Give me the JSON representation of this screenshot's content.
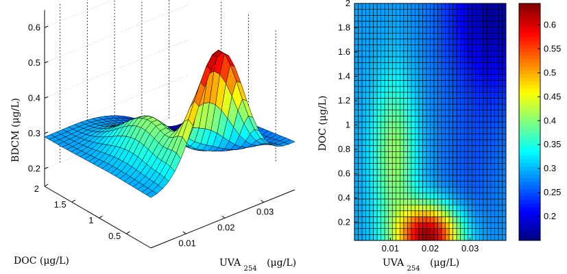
{
  "chart_data": [
    {
      "type": "surface3d",
      "zlabel": "BDCM  (μg/L)",
      "xlabel": "UVA",
      "xlabel_subscript": "254",
      "xlabel_units": "(μg/L)",
      "ylabel": "DOC  (μg/L)",
      "x_ticks": [
        "0.01",
        "0.02",
        "0.03"
      ],
      "y_ticks": [
        "0.5",
        "1",
        "1.5",
        "2"
      ],
      "z_ticks": [
        "0.2",
        "0.3",
        "0.4",
        "0.5",
        "0.6"
      ],
      "xlim": [
        0.001,
        0.038
      ],
      "ylim": [
        0.05,
        2.0
      ],
      "zlim": [
        0.15,
        0.65
      ],
      "colormap": "jet",
      "grid": true
    },
    {
      "type": "heatmap",
      "xlabel": "UVA",
      "xlabel_subscript": "254",
      "xlabel_units": "(μg/L)",
      "ylabel": "DOC  (μg/L)",
      "x_ticks": [
        "0.01",
        "0.02",
        "0.03"
      ],
      "y_ticks": [
        "0.2",
        "0.4",
        "0.6",
        "0.8",
        "1",
        "1.2",
        "1.4",
        "1.6",
        "1.8",
        "2"
      ],
      "xlim": [
        0.001,
        0.039
      ],
      "ylim": [
        0.05,
        2.0
      ],
      "colorbar_ticks": [
        "0.2",
        "0.25",
        "0.3",
        "0.35",
        "0.4",
        "0.45",
        "0.5",
        "0.55",
        "0.6"
      ],
      "colorbar_range": [
        0.15,
        0.645
      ],
      "colormap": "jet",
      "grid": false
    }
  ]
}
